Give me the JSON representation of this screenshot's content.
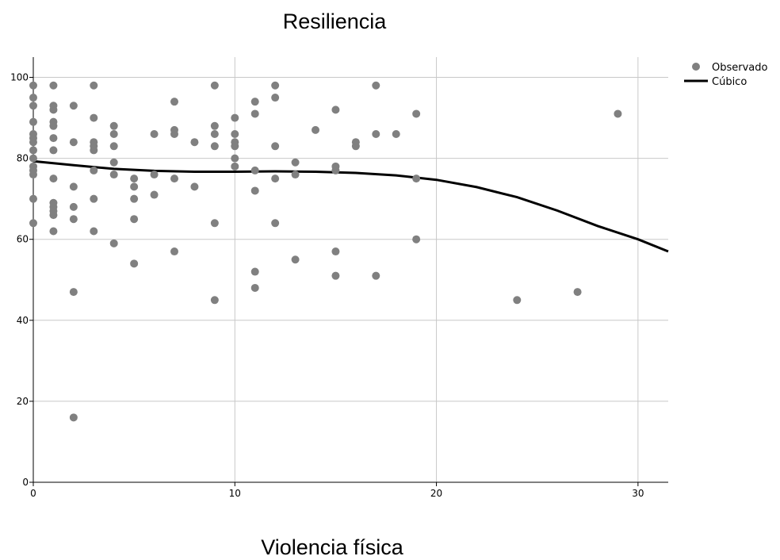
{
  "chart_data": {
    "type": "scatter",
    "title": "Resiliencia",
    "xlabel": "Violencia física",
    "ylabel": "",
    "xlim": [
      0,
      31.5
    ],
    "ylim": [
      0,
      105
    ],
    "x_ticks": [
      "0",
      "10",
      "20",
      "30"
    ],
    "y_ticks": [
      "0",
      "20",
      "40",
      "60",
      "80",
      "100"
    ],
    "grid": true,
    "legend": "top-right",
    "series": [
      {
        "name": "Observado",
        "kind": "points",
        "color": "#808080",
        "points": [
          [
            0,
            98
          ],
          [
            0,
            95
          ],
          [
            0,
            93
          ],
          [
            0,
            89
          ],
          [
            0,
            86
          ],
          [
            0,
            85
          ],
          [
            0,
            84
          ],
          [
            0,
            82
          ],
          [
            0,
            80
          ],
          [
            0,
            78
          ],
          [
            0,
            77
          ],
          [
            0,
            76
          ],
          [
            0,
            70
          ],
          [
            0,
            64
          ],
          [
            1,
            98
          ],
          [
            1,
            93
          ],
          [
            1,
            92
          ],
          [
            1,
            89
          ],
          [
            1,
            88
          ],
          [
            1,
            85
          ],
          [
            1,
            82
          ],
          [
            1,
            75
          ],
          [
            1,
            69
          ],
          [
            1,
            68
          ],
          [
            1,
            67
          ],
          [
            1,
            66
          ],
          [
            1,
            62
          ],
          [
            2,
            93
          ],
          [
            2,
            84
          ],
          [
            2,
            73
          ],
          [
            2,
            68
          ],
          [
            2,
            65
          ],
          [
            2,
            47
          ],
          [
            2,
            16
          ],
          [
            3,
            98
          ],
          [
            3,
            90
          ],
          [
            3,
            84
          ],
          [
            3,
            83
          ],
          [
            3,
            82
          ],
          [
            3,
            77
          ],
          [
            3,
            70
          ],
          [
            3,
            62
          ],
          [
            4,
            88
          ],
          [
            4,
            86
          ],
          [
            4,
            83
          ],
          [
            4,
            79
          ],
          [
            4,
            76
          ],
          [
            4,
            59
          ],
          [
            5,
            75
          ],
          [
            5,
            73
          ],
          [
            5,
            70
          ],
          [
            5,
            65
          ],
          [
            5,
            54
          ],
          [
            6,
            86
          ],
          [
            6,
            76
          ],
          [
            6,
            71
          ],
          [
            7,
            94
          ],
          [
            7,
            87
          ],
          [
            7,
            86
          ],
          [
            7,
            75
          ],
          [
            7,
            57
          ],
          [
            8,
            84
          ],
          [
            8,
            73
          ],
          [
            9,
            98
          ],
          [
            9,
            88
          ],
          [
            9,
            86
          ],
          [
            9,
            83
          ],
          [
            9,
            64
          ],
          [
            9,
            45
          ],
          [
            10,
            90
          ],
          [
            10,
            86
          ],
          [
            10,
            84
          ],
          [
            10,
            83
          ],
          [
            10,
            80
          ],
          [
            10,
            78
          ],
          [
            11,
            94
          ],
          [
            11,
            91
          ],
          [
            11,
            77
          ],
          [
            11,
            72
          ],
          [
            11,
            52
          ],
          [
            11,
            48
          ],
          [
            12,
            98
          ],
          [
            12,
            95
          ],
          [
            12,
            83
          ],
          [
            12,
            75
          ],
          [
            12,
            64
          ],
          [
            13,
            79
          ],
          [
            13,
            76
          ],
          [
            13,
            55
          ],
          [
            14,
            87
          ],
          [
            15,
            92
          ],
          [
            15,
            78
          ],
          [
            15,
            77
          ],
          [
            15,
            57
          ],
          [
            15,
            51
          ],
          [
            16,
            84
          ],
          [
            16,
            83
          ],
          [
            17,
            98
          ],
          [
            17,
            86
          ],
          [
            17,
            51
          ],
          [
            18,
            86
          ],
          [
            19,
            91
          ],
          [
            19,
            75
          ],
          [
            19,
            60
          ],
          [
            24,
            45
          ],
          [
            27,
            47
          ],
          [
            29,
            91
          ]
        ]
      },
      {
        "name": "Cúbico",
        "kind": "line",
        "color": "#000000",
        "points": [
          [
            0,
            79.3
          ],
          [
            2,
            78.3
          ],
          [
            4,
            77.4
          ],
          [
            6,
            76.9
          ],
          [
            8,
            76.7
          ],
          [
            10,
            76.7
          ],
          [
            12,
            76.8
          ],
          [
            14,
            76.7
          ],
          [
            16,
            76.4
          ],
          [
            18,
            75.8
          ],
          [
            20,
            74.7
          ],
          [
            22,
            72.9
          ],
          [
            24,
            70.4
          ],
          [
            26,
            67.1
          ],
          [
            28,
            63.3
          ],
          [
            30,
            60.0
          ],
          [
            31.5,
            57.0
          ]
        ]
      }
    ]
  }
}
